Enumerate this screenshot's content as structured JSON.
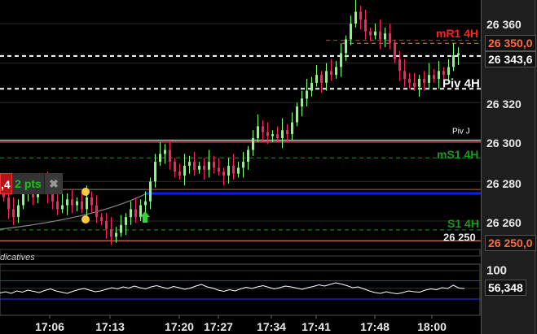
{
  "chart_data": {
    "type": "candlestick",
    "price_axis": {
      "ticks": [
        26360,
        26340,
        26320,
        26300,
        26280,
        26260
      ],
      "tick_labels": [
        "26 360",
        "26 340",
        "26 320",
        "26 300",
        "26 280",
        "26 260"
      ],
      "ylim": [
        26244,
        26373
      ]
    },
    "time_ticks": [
      "17:06",
      "17:13",
      "17:20",
      "17:27",
      "17:34",
      "17:41",
      "17:48",
      "18:00"
    ],
    "closes": [
      26272,
      26266,
      26262,
      26268,
      26275,
      26278,
      26272,
      26276,
      26280,
      26274,
      26270,
      26266,
      26268,
      26271,
      26268,
      26270,
      26266,
      26272,
      26268,
      26262,
      26260,
      26256,
      26252,
      26254,
      26258,
      26262,
      26266,
      26262,
      26268,
      26270,
      26280,
      26290,
      26294,
      26296,
      26290,
      26285,
      26283,
      26288,
      26290,
      26286,
      26288,
      26286,
      26290,
      26287,
      26285,
      26283,
      26288,
      26284,
      26287,
      26290,
      26296,
      26302,
      26308,
      26305,
      26303,
      26304,
      26302,
      26306,
      26304,
      26310,
      26318,
      26322,
      26326,
      26330,
      26334,
      26330,
      26336,
      26334,
      26338,
      26345,
      26352,
      26360,
      26366,
      26362,
      26356,
      26354,
      26356,
      26352,
      26355,
      26350,
      26342,
      26336,
      26332,
      26330,
      26328,
      26332,
      26330,
      26334,
      26332,
      26336,
      26334,
      26338,
      26344,
      26345
    ],
    "levels": [
      {
        "name": "mR1 4H",
        "value": 26351.5,
        "color": "#ff2020",
        "style": "dashed"
      },
      {
        "name": "",
        "value": 26350,
        "color": "#ff7a50",
        "style": "dashed"
      },
      {
        "name": "",
        "value": 26343.6,
        "color": "#ffffff",
        "style": "dashed"
      },
      {
        "name": "Piv 4H",
        "value": 26327,
        "color": "#ffffff",
        "style": "dashed"
      },
      {
        "name": "Piv J",
        "value": 26301,
        "color": "#ffffff",
        "style": "solid"
      },
      {
        "name": "",
        "value": 26300,
        "color": "#ff9a80",
        "style": "solid"
      },
      {
        "name": "mS1 4H",
        "value": 26292,
        "color": "#1a9a1a",
        "style": "dashed"
      },
      {
        "name": "",
        "value": 26276,
        "color": "#888888",
        "style": "solid"
      },
      {
        "name": "",
        "value": 26274,
        "color": "#0022ff",
        "style": "solid"
      },
      {
        "name": "S1 4H",
        "value": 26255.5,
        "color": "#1a9a1a",
        "style": "dashed"
      },
      {
        "name": "26 250",
        "value": 26250,
        "color": "#ff9a70",
        "style": "solid"
      }
    ],
    "price_tags": [
      {
        "label": "26 350,0",
        "color": "#ff6a40"
      },
      {
        "label": "26 343,6",
        "color": "#ffffff"
      },
      {
        "label": "26 250,0",
        "color": "#ff6a40"
      }
    ],
    "oscillator": {
      "ylim": [
        0,
        100
      ],
      "tick_label": "100",
      "bands": [
        75,
        30
      ],
      "current_label": "56,348",
      "values": [
        45,
        48,
        44,
        50,
        47,
        52,
        49,
        46,
        51,
        55,
        50,
        47,
        44,
        49,
        53,
        56,
        52,
        48,
        50,
        54,
        58,
        55,
        60,
        57,
        62,
        58,
        55,
        60,
        63,
        59,
        56,
        61,
        58,
        54,
        57,
        62,
        66,
        60,
        57,
        52,
        49,
        53,
        50,
        55,
        59,
        56,
        60,
        63,
        59,
        55,
        58,
        62,
        60,
        57,
        54,
        58,
        61,
        65,
        62,
        66,
        70,
        67,
        63,
        58,
        60,
        55,
        50,
        46,
        44,
        48,
        45,
        43,
        46,
        50,
        48,
        47,
        52,
        55,
        53,
        58,
        56,
        64,
        57,
        56
      ]
    },
    "indicator_label": "dicatives",
    "colors": {
      "up": "#7dff7a",
      "down": "#ff2060"
    }
  },
  "trade_pill": {
    "value": ",4",
    "pts": "2 pts",
    "close": "✖"
  }
}
